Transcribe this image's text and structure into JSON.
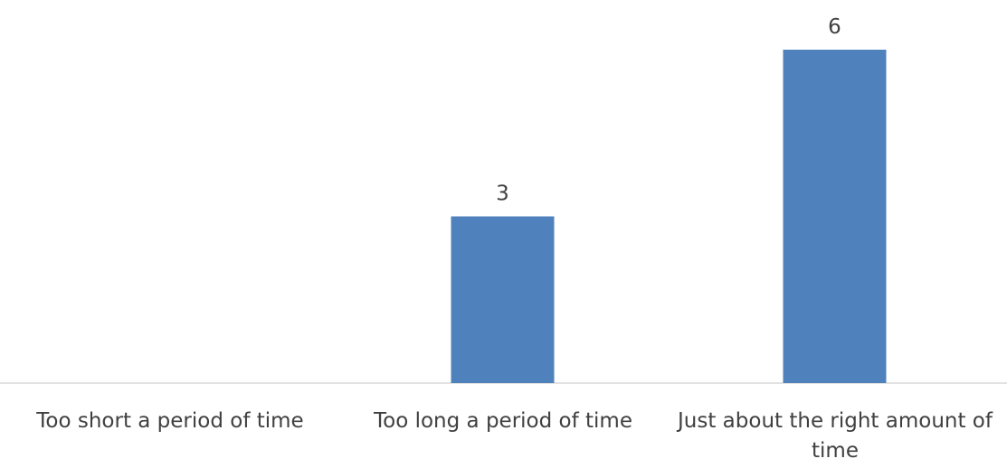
{
  "chart_data": {
    "type": "bar",
    "categories": [
      "Too short a period of time",
      "Too long a period of time",
      "Just about the right amount of time"
    ],
    "values": [
      0,
      3,
      6
    ],
    "data_labels": [
      "",
      "3",
      "6"
    ],
    "title": "",
    "xlabel": "",
    "ylabel": "",
    "ylim": [
      0,
      6
    ],
    "grid": false,
    "legend": "none",
    "bar_color": "#4F81BD",
    "axis_color": "#D9D9D9",
    "text_color": "#404040"
  }
}
